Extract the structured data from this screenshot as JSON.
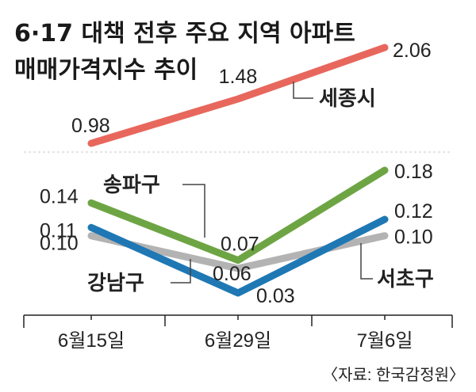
{
  "chart_data": {
    "type": "line",
    "title_lines": [
      "6·17 대책 전후 주요 지역 아파트",
      "매매가격지수 추이"
    ],
    "categories": [
      "6월15일",
      "6월29일",
      "7월6일"
    ],
    "top_panel": {
      "series": [
        {
          "name": "세종시",
          "values": [
            0.98,
            1.48,
            2.06
          ],
          "value_labels": [
            "0.98",
            "1.48",
            "2.06"
          ],
          "color": "#e8675d"
        }
      ]
    },
    "bottom_panel": {
      "series": [
        {
          "name": "송파구",
          "values": [
            0.14,
            0.07,
            0.18
          ],
          "value_labels": [
            "0.14",
            "0.07",
            "0.18"
          ],
          "color": "#6ea544"
        },
        {
          "name": "서초구",
          "values": [
            0.1,
            0.06,
            0.1
          ],
          "value_labels": [
            "0.10",
            "0.06",
            "0.10"
          ],
          "color": "#b3b3b3"
        },
        {
          "name": "강남구",
          "values": [
            0.11,
            0.03,
            0.12
          ],
          "value_labels": [
            "0.11",
            "0.03",
            "0.12"
          ],
          "color": "#1f78b4"
        }
      ]
    },
    "source": "〈자료: 한국감정원〉",
    "grid": false
  }
}
